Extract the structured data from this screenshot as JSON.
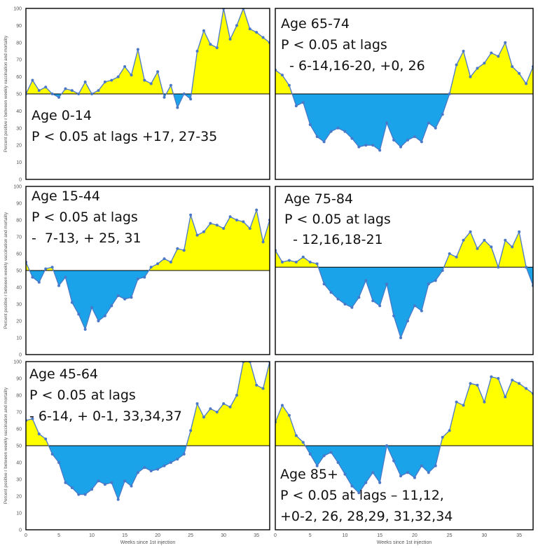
{
  "figure": {
    "y_axis_label": "Percent positive r between  weekly vaccination and mortality",
    "x_axis_label": "Weeks since 1st injection"
  },
  "colors": {
    "positive_fill": "#ffff00",
    "negative_fill": "#1aa3e8",
    "line": "#4a78c8",
    "marker": "#4a78c8",
    "frame": "#000000"
  },
  "chart_data": [
    {
      "type": "area",
      "panel": "Age 0-14",
      "annotation": [
        "Age 0-14",
        "P < 0.05 at lags +17, 27-35"
      ],
      "x": [
        0,
        1,
        2,
        3,
        4,
        5,
        6,
        7,
        8,
        9,
        10,
        11,
        12,
        13,
        14,
        15,
        16,
        17,
        18,
        19,
        20,
        21,
        22,
        23,
        24,
        25,
        26,
        27,
        28,
        29,
        30,
        31,
        32,
        33,
        34,
        35,
        36,
        37
      ],
      "values": [
        50,
        58,
        52,
        54,
        50,
        48,
        53,
        52,
        50,
        57,
        50,
        52,
        57,
        58,
        60,
        66,
        61,
        76,
        58,
        56,
        63,
        48,
        55,
        42,
        50,
        47,
        75,
        87,
        79,
        77,
        100,
        82,
        90,
        100,
        88,
        86,
        83,
        80
      ],
      "baseline": 50,
      "xlim": [
        0,
        37
      ],
      "ylim": [
        0,
        100
      ],
      "xticks": [
        0,
        5,
        10,
        15,
        20,
        25,
        30,
        35
      ],
      "yticks": [
        0,
        10,
        20,
        30,
        40,
        50,
        60,
        70,
        80,
        90,
        100
      ],
      "show_y_axis": true,
      "show_x_axis": false,
      "grid": false
    },
    {
      "type": "area",
      "panel": "Age 65-74",
      "annotation": [
        "Age 65-74",
        "P < 0.05 at lags",
        "  - 6-14,16-20, +0, 26"
      ],
      "x": [
        0,
        1,
        2,
        3,
        4,
        5,
        6,
        7,
        8,
        9,
        10,
        11,
        12,
        13,
        14,
        15,
        16,
        17,
        18,
        19,
        20,
        21,
        22,
        23,
        24,
        25,
        26,
        27,
        28,
        29,
        30,
        31,
        32,
        33,
        34,
        35,
        36,
        37
      ],
      "values": [
        64,
        61,
        55,
        43,
        45,
        32,
        25,
        22,
        28,
        30,
        28,
        24,
        19,
        20,
        20,
        17,
        33,
        23,
        19,
        23,
        25,
        22,
        33,
        30,
        38,
        50,
        67,
        75,
        60,
        65,
        68,
        74,
        72,
        80,
        66,
        62,
        56,
        66
      ],
      "baseline": 50,
      "xlim": [
        0,
        37
      ],
      "ylim": [
        0,
        100
      ],
      "xticks": [],
      "yticks": [],
      "show_y_axis": false,
      "show_x_axis": false,
      "grid": false
    },
    {
      "type": "area",
      "panel": "Age 15-44",
      "annotation": [
        "Age 15-44",
        "P < 0.05 at lags",
        "-  7-13, + 25, 31"
      ],
      "x": [
        0,
        1,
        2,
        3,
        4,
        5,
        6,
        7,
        8,
        9,
        10,
        11,
        12,
        13,
        14,
        15,
        16,
        17,
        18,
        19,
        20,
        21,
        22,
        23,
        24,
        25,
        26,
        27,
        28,
        29,
        30,
        31,
        32,
        33,
        34,
        35,
        36,
        37
      ],
      "values": [
        55,
        46,
        43,
        51,
        52,
        41,
        46,
        31,
        24,
        15,
        28,
        20,
        23,
        29,
        35,
        33,
        34,
        45,
        46,
        52,
        54,
        57,
        55,
        63,
        62,
        83,
        71,
        73,
        78,
        77,
        75,
        82,
        80,
        79,
        75,
        86,
        67,
        80
      ],
      "baseline": 50,
      "xlim": [
        0,
        37
      ],
      "ylim": [
        0,
        100
      ],
      "xticks": [
        0,
        5,
        10,
        15,
        20,
        25,
        30,
        35
      ],
      "yticks": [
        0,
        10,
        20,
        30,
        40,
        50,
        60,
        70,
        80,
        90,
        100
      ],
      "show_y_axis": true,
      "show_x_axis": false,
      "grid": false
    },
    {
      "type": "area",
      "panel": "Age 75-84",
      "annotation": [
        "Age 75-84",
        "P < 0.05 at lags",
        "  - 12,16,18-21"
      ],
      "x": [
        0,
        1,
        2,
        3,
        4,
        5,
        6,
        7,
        8,
        9,
        10,
        11,
        12,
        13,
        14,
        15,
        16,
        17,
        18,
        19,
        20,
        21,
        22,
        23,
        24,
        25,
        26,
        27,
        28,
        29,
        30,
        31,
        32,
        33,
        34,
        35,
        36,
        37
      ],
      "values": [
        62,
        55,
        56,
        55,
        58,
        55,
        54,
        42,
        37,
        33,
        30,
        28,
        34,
        44,
        32,
        29,
        42,
        23,
        10,
        20,
        29,
        26,
        42,
        44,
        50,
        60,
        58,
        68,
        73,
        63,
        68,
        64,
        52,
        68,
        64,
        73,
        52,
        41
      ],
      "baseline": 52,
      "xlim": [
        0,
        37
      ],
      "ylim": [
        0,
        100
      ],
      "xticks": [],
      "yticks": [],
      "show_y_axis": false,
      "show_x_axis": false,
      "grid": false
    },
    {
      "type": "area",
      "panel": "Age 45-64",
      "annotation": [
        "Age 45-64",
        "P < 0.05 at lags",
        "- 6-14, + 0-1, 33,34,37"
      ],
      "x": [
        0,
        1,
        2,
        3,
        4,
        5,
        6,
        7,
        8,
        9,
        10,
        11,
        12,
        13,
        14,
        15,
        16,
        17,
        18,
        19,
        20,
        21,
        22,
        23,
        24,
        25,
        26,
        27,
        28,
        29,
        30,
        31,
        32,
        33,
        34,
        35,
        36,
        37
      ],
      "values": [
        65,
        66,
        57,
        54,
        45,
        40,
        28,
        25,
        21,
        21,
        24,
        29,
        27,
        28,
        18,
        29,
        26,
        34,
        37,
        35,
        36,
        38,
        40,
        42,
        45,
        59,
        75,
        67,
        72,
        70,
        75,
        73,
        80,
        100,
        100,
        86,
        84,
        100
      ],
      "baseline": 50,
      "xlim": [
        0,
        37
      ],
      "ylim": [
        0,
        100
      ],
      "xticks": [
        0,
        5,
        10,
        15,
        20,
        25,
        30,
        35
      ],
      "yticks": [
        0,
        10,
        20,
        30,
        40,
        50,
        60,
        70,
        80,
        90,
        100
      ],
      "show_y_axis": true,
      "show_x_axis": true,
      "grid": false
    },
    {
      "type": "area",
      "panel": "Age 85+",
      "annotation": [
        "Age 85+",
        "P < 0.05 at lags – 11,12,",
        "+0-2, 26, 28,29, 31,32,34"
      ],
      "x": [
        0,
        1,
        2,
        3,
        4,
        5,
        6,
        7,
        8,
        9,
        10,
        11,
        12,
        13,
        14,
        15,
        16,
        17,
        18,
        19,
        20,
        21,
        22,
        23,
        24,
        25,
        26,
        27,
        28,
        29,
        30,
        31,
        32,
        33,
        34,
        35,
        36,
        37
      ],
      "values": [
        64,
        74,
        68,
        56,
        52,
        45,
        38,
        44,
        46,
        40,
        33,
        26,
        22,
        28,
        34,
        28,
        50,
        41,
        32,
        34,
        31,
        38,
        34,
        38,
        55,
        59,
        76,
        74,
        87,
        86,
        76,
        91,
        90,
        79,
        89,
        87,
        84,
        81
      ],
      "baseline": 50,
      "xlim": [
        0,
        37
      ],
      "ylim": [
        0,
        100
      ],
      "xticks": [
        0,
        5,
        10,
        15,
        20,
        25,
        30,
        35
      ],
      "yticks": [],
      "show_y_axis": false,
      "show_x_axis": true,
      "grid": false
    }
  ]
}
